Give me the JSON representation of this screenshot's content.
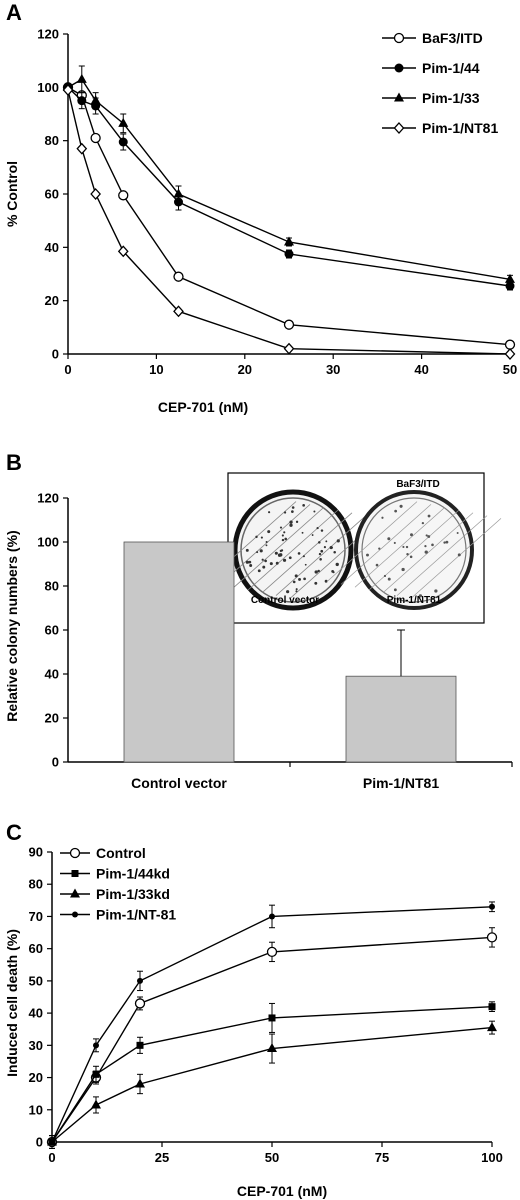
{
  "panels": {
    "a": {
      "letter": "A"
    },
    "b": {
      "letter": "B"
    },
    "c": {
      "letter": "C"
    }
  },
  "chart_data": [
    {
      "id": "A",
      "type": "line",
      "xlabel": "CEP-701 (nM)",
      "ylabel": "% Control",
      "xlim": [
        0,
        50
      ],
      "ylim": [
        0,
        120
      ],
      "xticks": [
        0,
        10,
        20,
        30,
        40,
        50
      ],
      "yticks": [
        0,
        20,
        40,
        60,
        80,
        100,
        120
      ],
      "legend": "top-right",
      "grid": false,
      "x": [
        0,
        1.56,
        3.125,
        6.25,
        12.5,
        25,
        50
      ],
      "series": [
        {
          "name": "BaF3/ITD",
          "marker": "circle-open",
          "values": [
            100,
            97,
            81,
            59.5,
            29,
            11,
            3.5
          ],
          "errors": [
            0,
            1,
            1,
            1,
            1,
            0.5,
            0.5
          ]
        },
        {
          "name": "Pim-1/44",
          "marker": "circle-filled",
          "values": [
            100,
            95,
            93,
            79.5,
            57,
            37.5,
            25.5
          ],
          "errors": [
            0,
            3,
            3,
            3,
            3,
            1.5,
            1.5
          ]
        },
        {
          "name": "Pim-1/33",
          "marker": "triangle-filled",
          "values": [
            100,
            103,
            95,
            86.5,
            60,
            42,
            28
          ],
          "errors": [
            0,
            5,
            3,
            3.5,
            3,
            1.5,
            1.5
          ]
        },
        {
          "name": "Pim-1/NT81",
          "marker": "diamond-open",
          "values": [
            99,
            77,
            60,
            38.5,
            16,
            2,
            0
          ],
          "errors": [
            0,
            0.8,
            0.8,
            0.8,
            0.8,
            0.5,
            0.3
          ]
        }
      ]
    },
    {
      "id": "B",
      "type": "bar",
      "categories": [
        "Control vector",
        "Pim-1/NT81"
      ],
      "values": [
        100,
        39
      ],
      "errors": [
        0,
        21
      ],
      "ylabel": "Relative colony numbers (%)",
      "ylim": [
        0,
        120
      ],
      "yticks": [
        0,
        20,
        40,
        60,
        80,
        100,
        120
      ],
      "bar_color": "#c8c8c8",
      "inset": {
        "title": "BaF3/ITD",
        "left_label": "Control vector",
        "right_label": "Pim-1/NT81"
      }
    },
    {
      "id": "C",
      "type": "line",
      "xlabel": "CEP-701 (nM)",
      "ylabel": "Induced cell death (%)",
      "xlim": [
        0,
        100
      ],
      "ylim": [
        0,
        90
      ],
      "xticks": [
        0,
        25,
        50,
        75,
        100
      ],
      "yticks": [
        0,
        10,
        20,
        30,
        40,
        50,
        60,
        70,
        80,
        90
      ],
      "legend": "top-left",
      "grid": false,
      "x": [
        0,
        10,
        20,
        50,
        100
      ],
      "series": [
        {
          "name": "Control",
          "marker": "circle-open",
          "values": [
            0,
            20,
            43,
            59,
            63.5
          ],
          "errors": [
            2,
            2,
            2,
            3,
            3
          ]
        },
        {
          "name": "Pim-1/44kd",
          "marker": "square-filled",
          "values": [
            0,
            21,
            30,
            38.5,
            42
          ],
          "errors": [
            2,
            2.5,
            2.5,
            4.5,
            1.5
          ]
        },
        {
          "name": "Pim-1/33kd",
          "marker": "triangle-filled",
          "values": [
            0,
            11.5,
            18,
            29,
            35.5
          ],
          "errors": [
            2,
            2.5,
            3,
            4.5,
            2
          ]
        },
        {
          "name": "Pim-1/NT-81",
          "marker": "circle-small-filled",
          "values": [
            0,
            30,
            50,
            70,
            73
          ],
          "errors": [
            2,
            2,
            3,
            3.5,
            1.5
          ]
        }
      ]
    }
  ]
}
